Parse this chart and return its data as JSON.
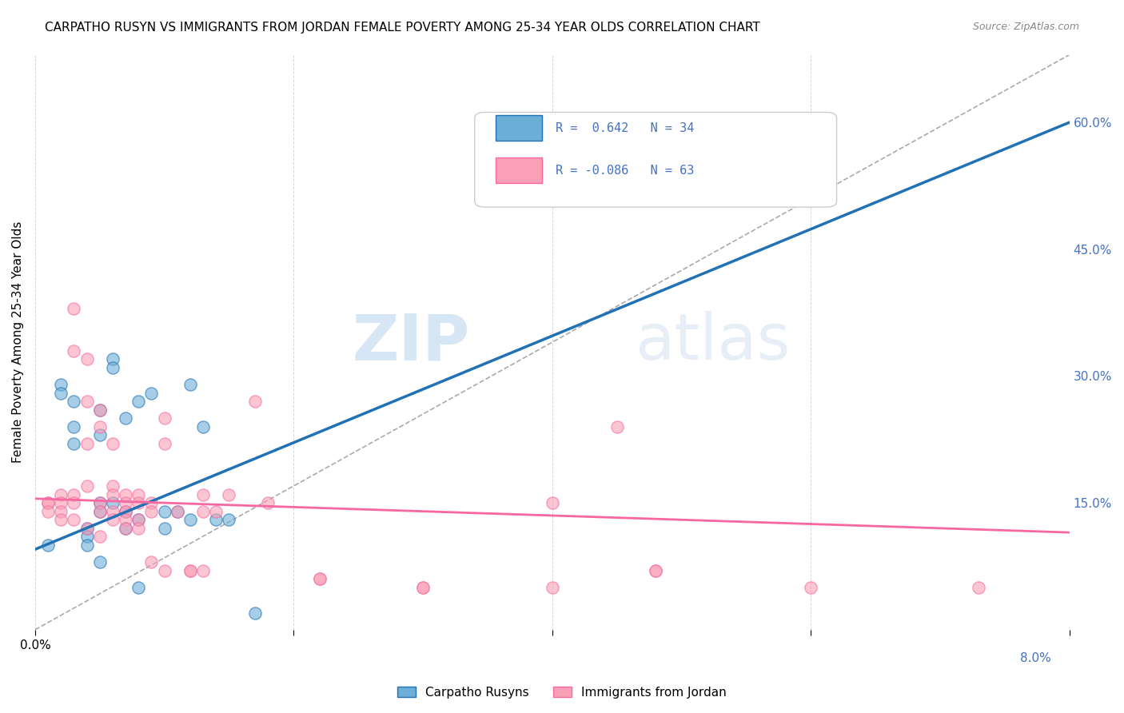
{
  "title": "CARPATHO RUSYN VS IMMIGRANTS FROM JORDAN FEMALE POVERTY AMONG 25-34 YEAR OLDS CORRELATION CHART",
  "source": "Source: ZipAtlas.com",
  "ylabel": "Female Poverty Among 25-34 Year Olds",
  "ylim": [
    0.0,
    0.68
  ],
  "xlim": [
    0.0,
    0.08
  ],
  "yticks": [
    0.15,
    0.3,
    0.45,
    0.6
  ],
  "ytick_labels": [
    "15.0%",
    "30.0%",
    "45.0%",
    "60.0%"
  ],
  "xticks": [
    0.0,
    0.02,
    0.04,
    0.06,
    0.08
  ],
  "blue_color": "#6baed6",
  "pink_color": "#fa9fb5",
  "blue_line_color": "#2171b5",
  "pink_line_color": "#f768a1",
  "legend_blue_r": "0.642",
  "legend_blue_n": "34",
  "legend_pink_r": "-0.086",
  "legend_pink_n": "63",
  "watermark_zip": "ZIP",
  "watermark_atlas": "atlas",
  "blue_scatter_x": [
    0.001,
    0.002,
    0.002,
    0.003,
    0.003,
    0.003,
    0.004,
    0.004,
    0.004,
    0.005,
    0.005,
    0.005,
    0.005,
    0.005,
    0.006,
    0.006,
    0.006,
    0.007,
    0.007,
    0.007,
    0.008,
    0.008,
    0.008,
    0.009,
    0.01,
    0.01,
    0.011,
    0.012,
    0.012,
    0.013,
    0.014,
    0.015,
    0.017,
    0.049
  ],
  "blue_scatter_y": [
    0.1,
    0.29,
    0.28,
    0.27,
    0.24,
    0.22,
    0.12,
    0.11,
    0.1,
    0.26,
    0.23,
    0.15,
    0.14,
    0.08,
    0.32,
    0.31,
    0.15,
    0.25,
    0.14,
    0.12,
    0.27,
    0.13,
    0.05,
    0.28,
    0.14,
    0.12,
    0.14,
    0.29,
    0.13,
    0.24,
    0.13,
    0.13,
    0.02,
    0.52
  ],
  "pink_scatter_x": [
    0.001,
    0.001,
    0.001,
    0.002,
    0.002,
    0.002,
    0.002,
    0.003,
    0.003,
    0.003,
    0.003,
    0.003,
    0.004,
    0.004,
    0.004,
    0.004,
    0.004,
    0.005,
    0.005,
    0.005,
    0.005,
    0.005,
    0.006,
    0.006,
    0.006,
    0.006,
    0.006,
    0.007,
    0.007,
    0.007,
    0.007,
    0.007,
    0.008,
    0.008,
    0.008,
    0.008,
    0.009,
    0.009,
    0.009,
    0.01,
    0.01,
    0.01,
    0.011,
    0.012,
    0.012,
    0.013,
    0.013,
    0.013,
    0.014,
    0.015,
    0.017,
    0.018,
    0.022,
    0.022,
    0.03,
    0.03,
    0.04,
    0.04,
    0.045,
    0.048,
    0.048,
    0.06,
    0.073
  ],
  "pink_scatter_y": [
    0.15,
    0.15,
    0.14,
    0.16,
    0.15,
    0.14,
    0.13,
    0.38,
    0.33,
    0.16,
    0.15,
    0.13,
    0.32,
    0.27,
    0.22,
    0.17,
    0.12,
    0.26,
    0.24,
    0.15,
    0.14,
    0.11,
    0.22,
    0.17,
    0.16,
    0.14,
    0.13,
    0.16,
    0.15,
    0.14,
    0.13,
    0.12,
    0.16,
    0.15,
    0.13,
    0.12,
    0.15,
    0.14,
    0.08,
    0.25,
    0.22,
    0.07,
    0.14,
    0.07,
    0.07,
    0.16,
    0.14,
    0.07,
    0.14,
    0.16,
    0.27,
    0.15,
    0.06,
    0.06,
    0.05,
    0.05,
    0.15,
    0.05,
    0.24,
    0.07,
    0.07,
    0.05,
    0.05
  ],
  "blue_trend_x": [
    0.0,
    0.08
  ],
  "blue_trend_y": [
    0.095,
    0.6
  ],
  "pink_trend_x": [
    0.0,
    0.08
  ],
  "pink_trend_y": [
    0.155,
    0.115
  ],
  "diag_line_x": [
    0.0,
    0.08
  ],
  "diag_line_y": [
    0.0,
    0.68
  ],
  "background_color": "#ffffff",
  "grid_color": "#cccccc"
}
